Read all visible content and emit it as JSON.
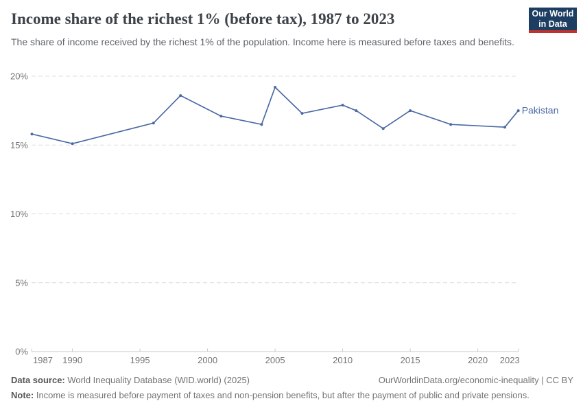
{
  "header": {
    "title": "Income share of the richest 1% (before tax), 1987 to 2023",
    "subtitle": "The share of income received by the richest 1% of the population. Income here is measured before taxes and benefits.",
    "logo": {
      "line1": "Our World",
      "line2": "in Data"
    }
  },
  "chart_data": {
    "type": "line",
    "title": "Income share of the richest 1% (before tax), 1987 to 2023",
    "x": {
      "min": 1987,
      "max": 2023,
      "ticks": [
        1987,
        1990,
        1995,
        2000,
        2005,
        2010,
        2015,
        2020,
        2023
      ]
    },
    "y": {
      "min": 0,
      "max": 20,
      "ticks": [
        0,
        5,
        10,
        15,
        20
      ],
      "unit": "%"
    },
    "grid": "horizontal-dashed",
    "legend_position": "end-of-line-label",
    "series": [
      {
        "name": "Pakistan",
        "color": "#4b6aa5",
        "points": [
          [
            1987,
            15.8
          ],
          [
            1990,
            15.1
          ],
          [
            1996,
            16.6
          ],
          [
            1998,
            18.6
          ],
          [
            2001,
            17.1
          ],
          [
            2004,
            16.5
          ],
          [
            2005,
            19.2
          ],
          [
            2007,
            17.3
          ],
          [
            2010,
            17.9
          ],
          [
            2011,
            17.5
          ],
          [
            2013,
            16.2
          ],
          [
            2015,
            17.5
          ],
          [
            2018,
            16.5
          ],
          [
            2022,
            16.3
          ],
          [
            2023,
            17.5
          ]
        ]
      }
    ]
  },
  "footer": {
    "source_label": "Data source:",
    "source_text": " World Inequality Database (WID.world) (2025)",
    "link_text": "OurWorldinData.org/economic-inequality | CC BY",
    "note_label": "Note:",
    "note_text": " Income is measured before payment of taxes and non-pension benefits, but after the payment of public and private pensions."
  },
  "colors": {
    "series_line": "#4b6aa5",
    "grid_line": "#dcdcdc",
    "axis_line": "#c8c8c8",
    "tick_text": "#747474",
    "logo_bg": "#1d3d63",
    "logo_accent": "#bc342d",
    "title_text": "#3d4349"
  }
}
